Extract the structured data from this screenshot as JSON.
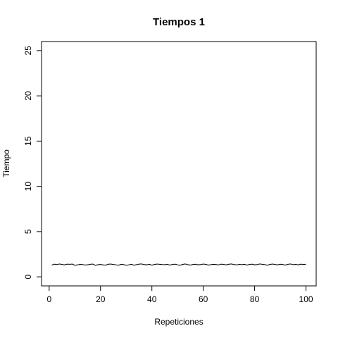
{
  "chart_data": {
    "type": "line",
    "title": "Tiempos 1",
    "xlabel": "Repeticiones",
    "ylabel": "Tiempo",
    "xlim": [
      1,
      100
    ],
    "ylim": [
      0,
      25
    ],
    "xticks": [
      0,
      20,
      40,
      60,
      80,
      100
    ],
    "yticks": [
      0,
      5,
      10,
      15,
      20,
      25
    ],
    "grid": false,
    "legend": "none",
    "series": [
      {
        "x": [
          1,
          2,
          3,
          4,
          5,
          6,
          7,
          8,
          9,
          10,
          11,
          12,
          13,
          14,
          15,
          16,
          17,
          18,
          19,
          20,
          21,
          22,
          23,
          24,
          25,
          26,
          27,
          28,
          29,
          30,
          31,
          32,
          33,
          34,
          35,
          36,
          37,
          38,
          39,
          40,
          41,
          42,
          43,
          44,
          45,
          46,
          47,
          48,
          49,
          50,
          51,
          52,
          53,
          54,
          55,
          56,
          57,
          58,
          59,
          60,
          61,
          62,
          63,
          64,
          65,
          66,
          67,
          68,
          69,
          70,
          71,
          72,
          73,
          74,
          75,
          76,
          77,
          78,
          79,
          80,
          81,
          82,
          83,
          84,
          85,
          86,
          87,
          88,
          89,
          90,
          91,
          92,
          93,
          94,
          95,
          96,
          97,
          98,
          99,
          100
        ],
        "values": [
          1.3,
          1.4,
          1.35,
          1.42,
          1.36,
          1.33,
          1.4,
          1.38,
          1.41,
          1.29,
          1.32,
          1.37,
          1.35,
          1.31,
          1.33,
          1.38,
          1.41,
          1.28,
          1.34,
          1.36,
          1.32,
          1.3,
          1.39,
          1.41,
          1.36,
          1.33,
          1.3,
          1.37,
          1.35,
          1.29,
          1.33,
          1.38,
          1.3,
          1.34,
          1.4,
          1.42,
          1.35,
          1.33,
          1.38,
          1.3,
          1.36,
          1.41,
          1.38,
          1.35,
          1.34,
          1.37,
          1.31,
          1.36,
          1.4,
          1.33,
          1.29,
          1.37,
          1.42,
          1.34,
          1.31,
          1.36,
          1.39,
          1.33,
          1.35,
          1.41,
          1.37,
          1.31,
          1.34,
          1.38,
          1.35,
          1.32,
          1.4,
          1.36,
          1.33,
          1.39,
          1.42,
          1.35,
          1.32,
          1.37,
          1.34,
          1.38,
          1.31,
          1.36,
          1.4,
          1.33,
          1.35,
          1.42,
          1.38,
          1.34,
          1.3,
          1.37,
          1.41,
          1.36,
          1.33,
          1.39,
          1.35,
          1.31,
          1.38,
          1.42,
          1.34,
          1.37,
          1.33,
          1.4,
          1.36,
          1.39
        ]
      }
    ]
  }
}
